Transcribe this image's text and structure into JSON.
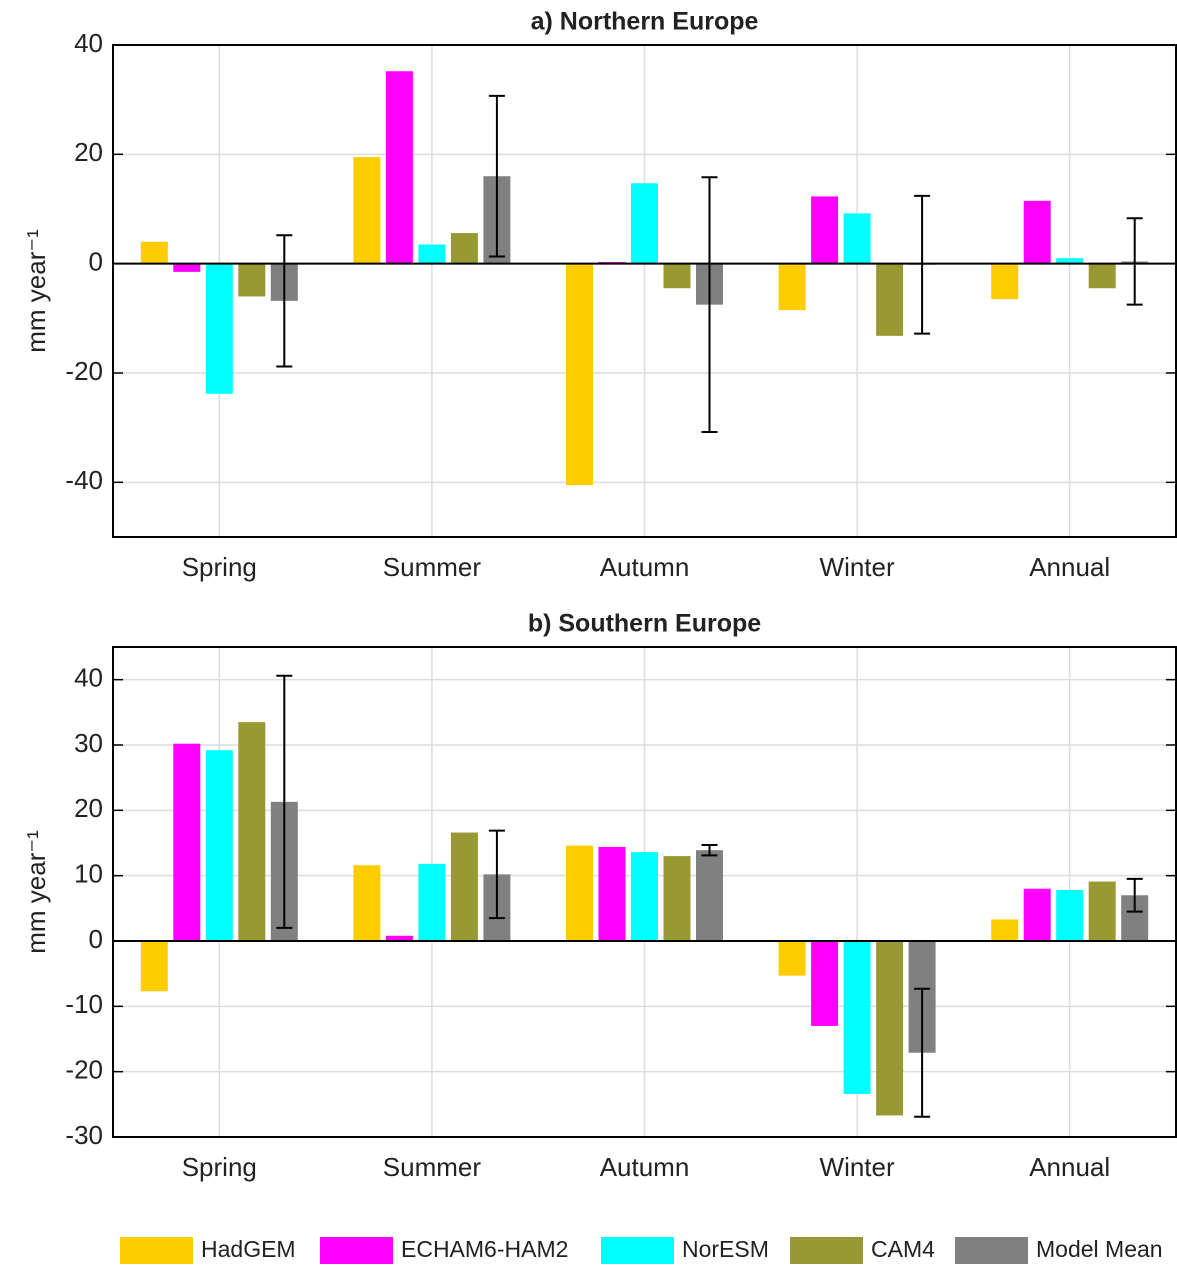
{
  "chart_data": [
    {
      "type": "bar",
      "title": "a) Northern Europe",
      "y_label": "mm year⁻¹",
      "categories": [
        "Spring",
        "Summer",
        "Autumn",
        "Winter",
        "Annual"
      ],
      "series": [
        {
          "name": "HadGEM",
          "color": "#ffcc00",
          "values": [
            4,
            19.5,
            -40.5,
            -8.5,
            -6.5
          ]
        },
        {
          "name": "ECHAM6-HAM2",
          "color": "#ff00ff",
          "values": [
            -1.5,
            35.2,
            0.3,
            12.3,
            11.5
          ]
        },
        {
          "name": "NorESM",
          "color": "#00ffff",
          "values": [
            -23.8,
            3.5,
            14.7,
            9.2,
            1
          ]
        },
        {
          "name": "CAM4",
          "color": "#999933",
          "values": [
            -6,
            5.6,
            -4.5,
            -13.2,
            -4.5
          ]
        },
        {
          "name": "Model Mean",
          "color": "#808080",
          "values": [
            -6.8,
            16,
            -7.5,
            -0.2,
            0.4
          ],
          "errors": [
            12,
            14.7,
            23.3,
            12.6,
            7.9
          ]
        }
      ],
      "ylim": [
        -50,
        40
      ],
      "yticks": [
        -40,
        -20,
        0,
        20,
        40
      ],
      "grid": true
    },
    {
      "type": "bar",
      "title": "b) Southern Europe",
      "y_label": "mm year⁻¹",
      "categories": [
        "Spring",
        "Summer",
        "Autumn",
        "Winter",
        "Annual"
      ],
      "series": [
        {
          "color": "#ffcc00",
          "values": [
            -7.7,
            11.6,
            14.6,
            -5.3,
            3.3
          ]
        },
        {
          "color": "#ff00ff",
          "values": [
            30.2,
            0.8,
            14.4,
            -13,
            8
          ]
        },
        {
          "color": "#00ffff",
          "values": [
            29.2,
            11.8,
            13.6,
            -23.4,
            7.8
          ]
        },
        {
          "color": "#999933",
          "values": [
            33.5,
            16.6,
            13,
            -26.7,
            9.1
          ]
        },
        {
          "color": "#808080",
          "values": [
            21.3,
            10.2,
            13.9,
            -17.1,
            7
          ],
          "errors": [
            19.3,
            6.7,
            0.8,
            9.8,
            2.5
          ]
        }
      ],
      "ylim": [
        -30,
        45
      ],
      "yticks": [
        -30,
        -20,
        -10,
        0,
        10,
        20,
        30,
        40
      ],
      "grid": true
    }
  ]
}
